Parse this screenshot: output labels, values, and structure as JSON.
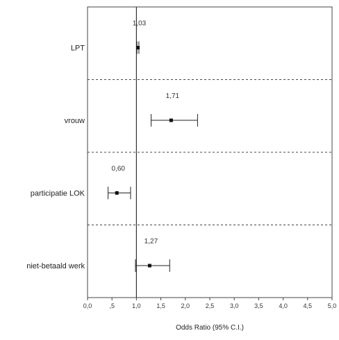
{
  "chart_data": {
    "type": "forest",
    "title": "",
    "xlabel": "Odds Ratio (95% C.I.)",
    "xlim": [
      0.0,
      5.0
    ],
    "xticks": [
      "0,0",
      ",5",
      "1,0",
      "1,5",
      "2,0",
      "2,5",
      "3,0",
      "3,5",
      "4,0",
      "4,5",
      "5,0"
    ],
    "reference_line": 1.0,
    "separators": "dashed",
    "rows": [
      {
        "label": "LPT",
        "or": 1.03,
        "lower": 1.01,
        "upper": 1.05,
        "or_label": "1,03"
      },
      {
        "label": "vrouw",
        "or": 1.71,
        "lower": 1.3,
        "upper": 2.25,
        "or_label": "1,71"
      },
      {
        "label": "participatie LOK",
        "or": 0.6,
        "lower": 0.42,
        "upper": 0.88,
        "or_label": "0,60"
      },
      {
        "label": "niet-betaald werk",
        "or": 1.27,
        "lower": 0.98,
        "upper": 1.68,
        "or_label": "1,27"
      }
    ]
  }
}
